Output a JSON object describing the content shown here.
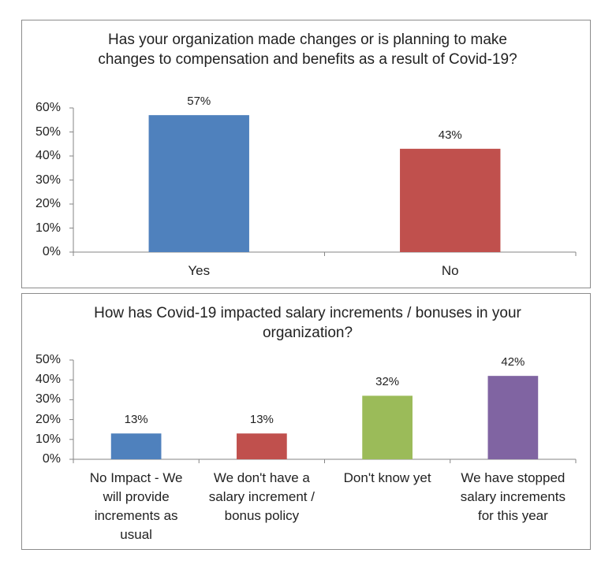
{
  "chart_data": [
    {
      "type": "bar",
      "title": "Has your organization made changes or is planning to make changes to compensation and benefits as a result of Covid-19?",
      "categories": [
        "Yes",
        "No"
      ],
      "values": [
        57,
        43
      ],
      "value_labels": [
        "57%",
        "43%"
      ],
      "colors": [
        "#4f81bd",
        "#c0504d"
      ],
      "ylim": [
        0,
        60
      ],
      "yticks": [
        {
          "value": 0,
          "label": "0%"
        },
        {
          "value": 10,
          "label": "10%"
        },
        {
          "value": 20,
          "label": "20%"
        },
        {
          "value": 30,
          "label": "30%"
        },
        {
          "value": 40,
          "label": "40%"
        },
        {
          "value": 50,
          "label": "50%"
        },
        {
          "value": 60,
          "label": "60%"
        }
      ],
      "grid": false
    },
    {
      "type": "bar",
      "title": "How has Covid-19 impacted salary increments / bonuses in your organization?",
      "categories": [
        "No Impact - We will provide increments as usual",
        "We don't have a salary increment / bonus policy",
        "Don't know yet",
        "We have stopped salary increments for this year"
      ],
      "values": [
        13,
        13,
        32,
        42
      ],
      "value_labels": [
        "13%",
        "13%",
        "32%",
        "42%"
      ],
      "colors": [
        "#4f81bd",
        "#c0504d",
        "#9bbb59",
        "#8064a2"
      ],
      "ylim": [
        0,
        50
      ],
      "yticks": [
        {
          "value": 0,
          "label": "0%"
        },
        {
          "value": 10,
          "label": "10%"
        },
        {
          "value": 20,
          "label": "20%"
        },
        {
          "value": 30,
          "label": "30%"
        },
        {
          "value": 40,
          "label": "40%"
        },
        {
          "value": 50,
          "label": "50%"
        }
      ],
      "grid": false
    }
  ]
}
